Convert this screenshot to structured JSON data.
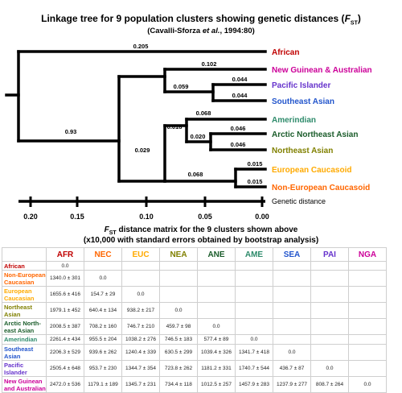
{
  "title": "Linkage tree for 9 population clusters showing genetic distances (",
  "title_sym": "F",
  "title_sub": "ST",
  "title_end": ")",
  "citation_pre": "(Cavalli-Sforza ",
  "citation_italic": "et al.",
  "citation_post": ", 1994:80)",
  "colors": {
    "african": "#c00000",
    "new_guinean": "#cc0099",
    "pacific": "#6633cc",
    "southeast": "#2255cc",
    "amerindian": "#2e8b6b",
    "arctic": "#1a5c2a",
    "northeast": "#808000",
    "european": "#ffaa00",
    "non_european": "#ff6600"
  },
  "tree": {
    "leaves": [
      {
        "label": "African",
        "color": "#c00000"
      },
      {
        "label": "New Guinean & Australian",
        "color": "#cc0099"
      },
      {
        "label": "Pacific Islander",
        "color": "#6633cc"
      },
      {
        "label": "Southeast Asian",
        "color": "#2255cc"
      },
      {
        "label": "Amerindian",
        "color": "#2e8b6b"
      },
      {
        "label": "Arctic Northeast Asian",
        "color": "#1a5c2a"
      },
      {
        "label": "Northeast Asian",
        "color": "#808000"
      },
      {
        "label": "European Caucasoid",
        "color": "#ffaa00"
      },
      {
        "label": "Non-European Caucasoid",
        "color": "#ff6600"
      }
    ],
    "branch_labels": [
      "0.205",
      "0.102",
      "0.059",
      "0.044",
      "0.044",
      "0.93",
      "0.068",
      "0.018",
      "0.020",
      "0.046",
      "0.046",
      "0.029",
      "0.068",
      "0.015",
      "0.015"
    ],
    "axis_ticks": [
      "0.20",
      "0.15",
      "0.10",
      "0.05",
      "0.00"
    ],
    "axis_label": "Genetic distance"
  },
  "matrix": {
    "title_pre": "F",
    "title_sub": "ST",
    "title_post": " distance matrix for the 9 clusters shown above",
    "subtitle": "(x10,000 with standard errors obtained by bootstrap analysis)",
    "columns": [
      {
        "code": "AFR",
        "color": "#c00000"
      },
      {
        "code": "NEC",
        "color": "#ff6600"
      },
      {
        "code": "EUC",
        "color": "#ffaa00"
      },
      {
        "code": "NEA",
        "color": "#808000"
      },
      {
        "code": "ANE",
        "color": "#1a5c2a"
      },
      {
        "code": "AME",
        "color": "#2e8b6b"
      },
      {
        "code": "SEA",
        "color": "#2255cc"
      },
      {
        "code": "PAI",
        "color": "#6633cc"
      },
      {
        "code": "NGA",
        "color": "#cc0099"
      }
    ],
    "rows": [
      {
        "label": "African",
        "color": "#c00000",
        "values": [
          "0.0"
        ]
      },
      {
        "label": "Non-European Caucasian",
        "color": "#ff6600",
        "values": [
          "1340.0 ± 301",
          "0.0"
        ]
      },
      {
        "label": "European Caucasian",
        "color": "#ffaa00",
        "values": [
          "1655.6 ± 416",
          "154.7 ± 29",
          "0.0"
        ]
      },
      {
        "label": "Northeast Asian",
        "color": "#808000",
        "values": [
          "1979.1 ± 452",
          "640.4 ± 134",
          "938.2 ± 217",
          "0.0"
        ]
      },
      {
        "label": "Arctic North-east Asian",
        "color": "#1a5c2a",
        "values": [
          "2008.5 ± 387",
          "708.2 ± 160",
          "746.7 ± 210",
          "459.7 ± 98",
          "0.0"
        ]
      },
      {
        "label": "Amerindian",
        "color": "#2e8b6b",
        "values": [
          "2261.4 ± 434",
          "955.5 ± 204",
          "1038.2 ± 276",
          "746.5 ± 183",
          "577.4 ± 89",
          "0.0"
        ]
      },
      {
        "label": "Southeast Asian",
        "color": "#2255cc",
        "values": [
          "2206.3 ± 529",
          "939.6 ± 262",
          "1240.4 ± 339",
          "630.5 ± 299",
          "1039.4 ± 326",
          "1341.7 ± 418",
          "0.0"
        ]
      },
      {
        "label": "Pacific Islander",
        "color": "#6633cc",
        "values": [
          "2505.4 ± 648",
          "953.7 ± 230",
          "1344.7 ± 354",
          "723.8 ± 262",
          "1181.2 ± 331",
          "1740.7 ± 544",
          "436.7 ± 87",
          "0.0"
        ]
      },
      {
        "label": "New Guinean and Australian",
        "color": "#cc0099",
        "values": [
          "2472.0 ± 536",
          "1179.1 ± 189",
          "1345.7 ± 231",
          "734.4 ± 118",
          "1012.5 ± 257",
          "1457.9 ± 283",
          "1237.9 ± 277",
          "808.7 ± 264",
          "0.0"
        ]
      }
    ]
  }
}
